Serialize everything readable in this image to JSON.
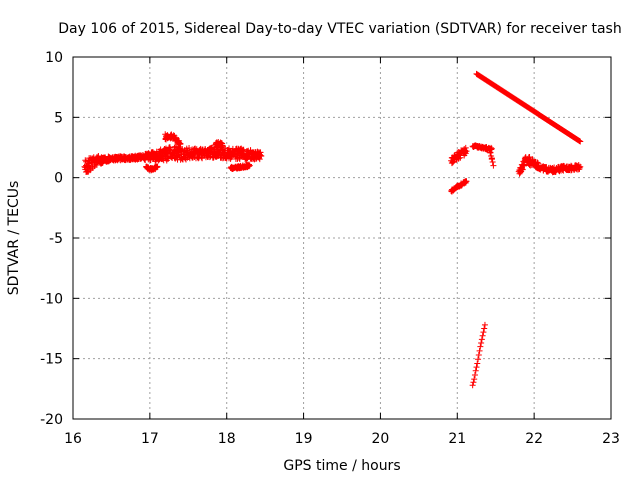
{
  "chart_data": {
    "type": "scatter",
    "title": "Day 106 of 2015, Sidereal Day-to-day VTEC variation (SDTVAR) for receiver tash",
    "xlabel": "GPS time / hours",
    "ylabel": "SDTVAR / TECUs",
    "xlim": [
      16,
      23
    ],
    "ylim": [
      -20,
      10
    ],
    "xticks": [
      "16",
      "17",
      "18",
      "19",
      "20",
      "21",
      "22",
      "23"
    ],
    "yticks": [
      "10",
      "5",
      "0",
      "-5",
      "-10",
      "-15",
      "-20"
    ],
    "grid": true,
    "marker": "+",
    "series": [
      {
        "name": "SDTVAR",
        "color": "#ff0000",
        "segments": [
          {
            "name": "band-16-to-18.5",
            "x": [
              16.15,
              16.3,
              16.5,
              16.7,
              16.9,
              17.1,
              17.3,
              17.5,
              17.7,
              17.9,
              18.1,
              18.3,
              18.45
            ],
            "y": [
              0.9,
              1.4,
              1.6,
              1.6,
              1.7,
              1.8,
              2.0,
              2.0,
              2.0,
              2.1,
              2.0,
              1.9,
              1.8
            ],
            "spread": [
              0.7,
              0.4,
              0.2,
              0.15,
              0.2,
              0.5,
              0.6,
              0.5,
              0.4,
              0.5,
              0.5,
              0.4,
              0.3
            ]
          },
          {
            "name": "bump-17.3",
            "x": [
              17.2,
              17.25,
              17.3,
              17.35,
              17.4
            ],
            "y": [
              3.2,
              3.4,
              3.4,
              3.1,
              2.8
            ],
            "spread": [
              0.2,
              0.2,
              0.2,
              0.2,
              0.2
            ]
          },
          {
            "name": "bump-17.9",
            "x": [
              17.85,
              17.9,
              17.95
            ],
            "y": [
              2.7,
              2.8,
              2.6
            ],
            "spread": [
              0.2,
              0.2,
              0.2
            ]
          },
          {
            "name": "dip-17.0",
            "x": [
              16.95,
              17.0,
              17.05,
              17.1
            ],
            "y": [
              0.9,
              0.7,
              0.7,
              0.9
            ],
            "spread": [
              0.1,
              0.1,
              0.1,
              0.1
            ]
          },
          {
            "name": "tail-18.1",
            "x": [
              18.05,
              18.1,
              18.2,
              18.3
            ],
            "y": [
              0.8,
              0.8,
              0.9,
              1.0
            ],
            "spread": [
              0.1,
              0.1,
              0.1,
              0.1
            ]
          },
          {
            "name": "cluster-20.9-upper",
            "x": [
              20.92,
              20.98,
              21.03,
              21.08,
              21.12
            ],
            "y": [
              1.4,
              1.7,
              1.9,
              2.1,
              2.2
            ],
            "spread": [
              0.3,
              0.3,
              0.3,
              0.3,
              0.3
            ]
          },
          {
            "name": "cluster-20.9-lower",
            "x": [
              20.92,
              20.97,
              21.02,
              21.07,
              21.12
            ],
            "y": [
              -1.1,
              -0.9,
              -0.7,
              -0.5,
              -0.3
            ],
            "spread": [
              0.1,
              0.1,
              0.1,
              0.1,
              0.1
            ]
          },
          {
            "name": "cluster-21.3",
            "x": [
              21.2,
              21.25,
              21.3,
              21.35,
              21.4,
              21.45
            ],
            "y": [
              2.6,
              2.6,
              2.5,
              2.5,
              2.4,
              2.4
            ],
            "spread": [
              0.1,
              0.1,
              0.1,
              0.1,
              0.1,
              0.1
            ]
          },
          {
            "name": "drop-21.45",
            "x": [
              21.42,
              21.44,
              21.46,
              21.47
            ],
            "y": [
              2.3,
              1.8,
              1.3,
              1.0
            ],
            "spread": [
              0.1,
              0.1,
              0.1,
              0.1
            ]
          },
          {
            "name": "band-21.8-to-22.6",
            "x": [
              21.8,
              21.9,
              22.0,
              22.1,
              22.2,
              22.3,
              22.4,
              22.5,
              22.6
            ],
            "y": [
              0.5,
              1.5,
              1.2,
              0.8,
              0.6,
              0.7,
              0.8,
              0.8,
              0.9
            ],
            "spread": [
              0.3,
              0.4,
              0.3,
              0.2,
              0.2,
              0.2,
              0.2,
              0.2,
              0.2
            ]
          },
          {
            "name": "slant-21.25",
            "x": [
              21.2,
              21.22,
              21.24,
              21.26,
              21.28,
              21.3,
              21.32,
              21.34,
              21.36
            ],
            "y": [
              -17.2,
              -16.7,
              -16.0,
              -15.4,
              -14.7,
              -14.0,
              -13.4,
              -12.8,
              -12.2
            ],
            "spread": [
              0,
              0,
              0,
              0,
              0,
              0,
              0,
              0,
              0
            ]
          },
          {
            "name": "outliers",
            "x": [
              21.25,
              22.6,
              17.2
            ],
            "y": [
              8.6,
              3.0,
              3.6
            ],
            "spread": [
              0,
              0,
              0
            ]
          }
        ]
      }
    ]
  }
}
